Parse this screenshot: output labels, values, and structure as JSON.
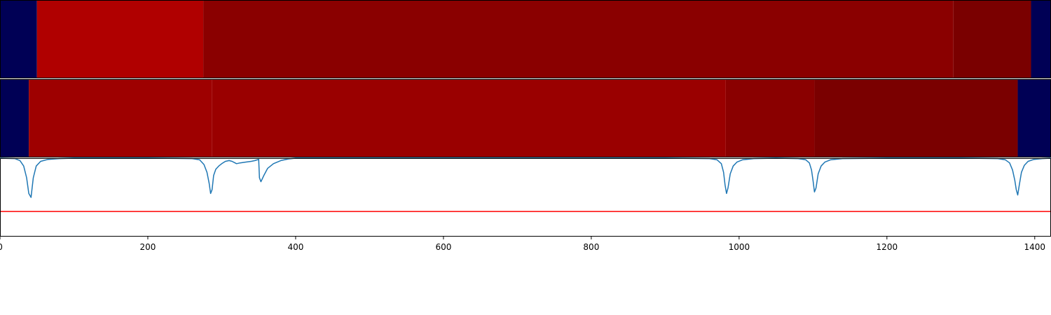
{
  "chart_data": [
    {
      "type": "heatmap",
      "xlim": [
        0,
        1422
      ],
      "segments": [
        {
          "start": 0,
          "end": 50,
          "color": "#000055"
        },
        {
          "start": 50,
          "end": 275,
          "color": "#b00000"
        },
        {
          "start": 275,
          "end": 1290,
          "color": "#8a0000"
        },
        {
          "start": 1290,
          "end": 1395,
          "color": "#7a0000"
        },
        {
          "start": 1395,
          "end": 1422,
          "color": "#000055"
        }
      ]
    },
    {
      "type": "heatmap",
      "xlim": [
        0,
        1422
      ],
      "segments": [
        {
          "start": 0,
          "end": 39,
          "color": "#000055"
        },
        {
          "start": 39,
          "end": 287,
          "color": "#9e0000"
        },
        {
          "start": 287,
          "end": 982,
          "color": "#9a0000"
        },
        {
          "start": 982,
          "end": 1102,
          "color": "#8a0000"
        },
        {
          "start": 1102,
          "end": 1377,
          "color": "#7a0000"
        },
        {
          "start": 1377,
          "end": 1422,
          "color": "#000055"
        }
      ]
    },
    {
      "type": "line",
      "xlim": [
        0,
        1422
      ],
      "ylim": [
        0,
        1
      ],
      "xticks": [
        "0",
        "200",
        "400",
        "600",
        "800",
        "1000",
        "1200",
        "1400"
      ],
      "series": [
        {
          "color": "#1f77b4",
          "x": [
            0,
            20,
            27,
            32,
            36,
            39,
            42,
            45,
            49,
            55,
            65,
            80,
            100,
            200,
            260,
            270,
            276,
            280,
            283,
            285,
            287,
            289,
            292,
            296,
            300,
            305,
            310,
            314,
            318,
            320,
            325,
            332,
            340,
            345,
            350,
            351,
            353,
            357,
            362,
            370,
            380,
            390,
            400,
            500,
            700,
            900,
            960,
            970,
            976,
            979,
            981,
            983,
            985,
            988,
            992,
            997,
            1005,
            1020,
            1050,
            1080,
            1090,
            1095,
            1098,
            1100,
            1102,
            1104,
            1107,
            1111,
            1116,
            1124,
            1140,
            1200,
            1300,
            1350,
            1360,
            1366,
            1370,
            1373,
            1375,
            1377,
            1379,
            1382,
            1386,
            1391,
            1399,
            1410,
            1422
          ],
          "y": [
            1.0,
            0.995,
            0.97,
            0.9,
            0.75,
            0.55,
            0.5,
            0.75,
            0.9,
            0.96,
            0.985,
            0.995,
            1.0,
            1.0,
            0.995,
            0.98,
            0.92,
            0.82,
            0.68,
            0.55,
            0.6,
            0.78,
            0.86,
            0.9,
            0.93,
            0.96,
            0.97,
            0.96,
            0.94,
            0.93,
            0.94,
            0.95,
            0.96,
            0.97,
            0.985,
            0.75,
            0.7,
            0.78,
            0.87,
            0.93,
            0.97,
            0.99,
            1.0,
            1.0,
            1.0,
            1.0,
            0.995,
            0.98,
            0.93,
            0.82,
            0.66,
            0.55,
            0.62,
            0.8,
            0.9,
            0.95,
            0.98,
            0.995,
            1.0,
            0.995,
            0.98,
            0.94,
            0.85,
            0.72,
            0.57,
            0.62,
            0.8,
            0.9,
            0.95,
            0.98,
            0.995,
            1.0,
            1.0,
            0.995,
            0.98,
            0.94,
            0.85,
            0.72,
            0.6,
            0.53,
            0.65,
            0.82,
            0.91,
            0.96,
            0.985,
            0.995,
            1.0
          ]
        }
      ],
      "threshold": {
        "y": 0.32,
        "color": "#ff0000"
      }
    }
  ]
}
